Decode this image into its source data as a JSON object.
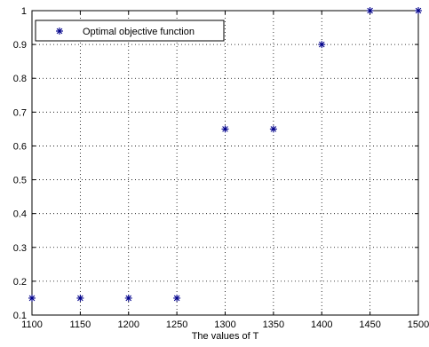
{
  "chart_data": {
    "type": "scatter",
    "title": "",
    "xlabel": "The values  of T",
    "ylabel": "",
    "xlim": [
      1100,
      1500
    ],
    "ylim": [
      0.1,
      1
    ],
    "xticks": [
      1100,
      1150,
      1200,
      1250,
      1300,
      1350,
      1400,
      1450,
      1500
    ],
    "yticks": [
      0.1,
      0.2,
      0.3,
      0.4,
      0.5,
      0.6,
      0.7,
      0.8,
      0.9,
      1
    ],
    "xtick_labels": [
      "1100",
      "1150",
      "1200",
      "1250",
      "1300",
      "1350",
      "1400",
      "1450",
      "1500"
    ],
    "ytick_labels": [
      "0.1",
      "0.2",
      "0.3",
      "0.4",
      "0.5",
      "0.6",
      "0.7",
      "0.8",
      "0.9",
      "1"
    ],
    "grid": true,
    "grid_style": "dotted",
    "legend_position": "top-left",
    "series": [
      {
        "name": "Optimal objective  function",
        "marker": "asterisk",
        "color": "#00008b",
        "x": [
          1100,
          1150,
          1200,
          1250,
          1300,
          1350,
          1400,
          1450,
          1500
        ],
        "y": [
          0.15,
          0.15,
          0.15,
          0.15,
          0.65,
          0.65,
          0.9,
          1,
          1
        ]
      }
    ]
  }
}
